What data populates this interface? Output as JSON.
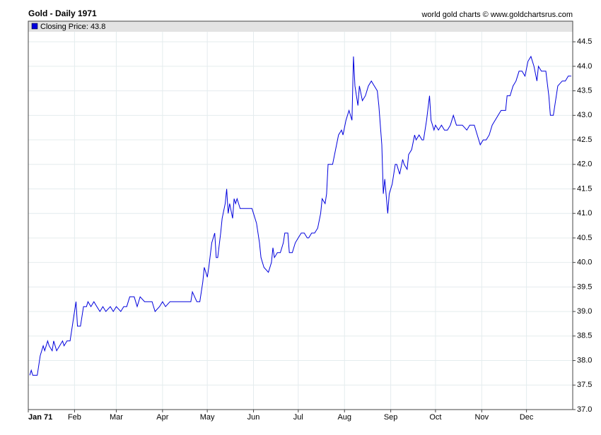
{
  "chart_data": {
    "type": "line",
    "title": "Gold - Daily 1971",
    "source": "world gold charts © www.goldchartsrus.com",
    "x": [
      1,
      2,
      3,
      6,
      8,
      10,
      11,
      13,
      14,
      16,
      17,
      19,
      21,
      23,
      24,
      26,
      28,
      30,
      32,
      33,
      35,
      37,
      39,
      40,
      42,
      44,
      46,
      48,
      50,
      52,
      55,
      57,
      59,
      62,
      64,
      66,
      68,
      71,
      73,
      75,
      78,
      83,
      85,
      88,
      90,
      92,
      95,
      100,
      104,
      109,
      110,
      113,
      115,
      117,
      118,
      120,
      121,
      123,
      125,
      126,
      127,
      129,
      130,
      132,
      133,
      134,
      135,
      137,
      138,
      139,
      140,
      142,
      145,
      148,
      150,
      153,
      155,
      156,
      158,
      161,
      163,
      164,
      165,
      167,
      169,
      171,
      172,
      174,
      175,
      177,
      179,
      181,
      183,
      185,
      187,
      188,
      190,
      192,
      194,
      196,
      197,
      199,
      200,
      201,
      204,
      206,
      208,
      210,
      211,
      213,
      215,
      217,
      218,
      219,
      221,
      222,
      224,
      226,
      228,
      230,
      232,
      234,
      235,
      237,
      238,
      239,
      241,
      242,
      244,
      246,
      247,
      249,
      251,
      252,
      254,
      255,
      257,
      259,
      260,
      262,
      264,
      265,
      267,
      269,
      270,
      272,
      273,
      275,
      277,
      279,
      281,
      283,
      285,
      287,
      289,
      291,
      294,
      296,
      299,
      301,
      303,
      305,
      307,
      309,
      311,
      313,
      315,
      317,
      320,
      321,
      323,
      325,
      327,
      329,
      331,
      333,
      335,
      337,
      339,
      341,
      342,
      344,
      347,
      349,
      350,
      352,
      354,
      355,
      358,
      360,
      362,
      364
    ],
    "series": [
      {
        "name": "Closing Price",
        "color": "#0000dd",
        "values": [
          37.7,
          37.8,
          37.7,
          37.7,
          38.1,
          38.3,
          38.2,
          38.4,
          38.3,
          38.2,
          38.4,
          38.2,
          38.3,
          38.4,
          38.3,
          38.4,
          38.4,
          38.8,
          39.2,
          38.7,
          38.7,
          39.1,
          39.1,
          39.2,
          39.1,
          39.2,
          39.1,
          39.0,
          39.1,
          39.0,
          39.1,
          39.0,
          39.1,
          39.0,
          39.1,
          39.1,
          39.3,
          39.3,
          39.1,
          39.3,
          39.2,
          39.2,
          39.0,
          39.1,
          39.2,
          39.1,
          39.2,
          39.2,
          39.2,
          39.2,
          39.4,
          39.2,
          39.2,
          39.6,
          39.9,
          39.7,
          39.9,
          40.4,
          40.6,
          40.1,
          40.1,
          40.6,
          40.9,
          41.2,
          41.5,
          41.0,
          41.2,
          40.9,
          41.3,
          41.2,
          41.3,
          41.1,
          41.1,
          41.1,
          41.1,
          40.8,
          40.4,
          40.1,
          39.9,
          39.8,
          40.0,
          40.3,
          40.1,
          40.2,
          40.2,
          40.4,
          40.6,
          40.6,
          40.2,
          40.2,
          40.4,
          40.5,
          40.6,
          40.6,
          40.5,
          40.5,
          40.6,
          40.6,
          40.7,
          41.0,
          41.3,
          41.2,
          41.4,
          42.0,
          42.0,
          42.3,
          42.6,
          42.7,
          42.6,
          42.9,
          43.1,
          42.9,
          44.2,
          43.6,
          43.2,
          43.6,
          43.3,
          43.4,
          43.6,
          43.7,
          43.6,
          43.5,
          43.2,
          42.4,
          41.4,
          41.7,
          41.0,
          41.4,
          41.6,
          42.0,
          42.0,
          41.8,
          42.1,
          42.0,
          41.9,
          42.2,
          42.3,
          42.6,
          42.5,
          42.6,
          42.5,
          42.5,
          42.9,
          43.4,
          42.9,
          42.7,
          42.8,
          42.7,
          42.8,
          42.7,
          42.7,
          42.8,
          43.0,
          42.8,
          42.8,
          42.8,
          42.7,
          42.8,
          42.8,
          42.6,
          42.4,
          42.5,
          42.5,
          42.6,
          42.8,
          42.9,
          43.0,
          43.1,
          43.1,
          43.4,
          43.4,
          43.6,
          43.7,
          43.9,
          43.9,
          43.8,
          44.1,
          44.2,
          44.0,
          43.7,
          44.0,
          43.9,
          43.9,
          43.4,
          43.0,
          43.0,
          43.4,
          43.6,
          43.7,
          43.7,
          43.8,
          43.8
        ]
      }
    ],
    "xlim": [
      0,
      365
    ],
    "xticks": [
      {
        "value": 0,
        "label": "Jan 71"
      },
      {
        "value": 31,
        "label": "Feb"
      },
      {
        "value": 59,
        "label": "Mar"
      },
      {
        "value": 90,
        "label": "Apr"
      },
      {
        "value": 120,
        "label": "May"
      },
      {
        "value": 151,
        "label": "Jun"
      },
      {
        "value": 181,
        "label": "Jul"
      },
      {
        "value": 212,
        "label": "Aug"
      },
      {
        "value": 243,
        "label": "Sep"
      },
      {
        "value": 273,
        "label": "Oct"
      },
      {
        "value": 304,
        "label": "Nov"
      },
      {
        "value": 334,
        "label": "Dec"
      }
    ],
    "ylim": [
      37,
      44.92
    ],
    "yticks": [
      {
        "value": 37,
        "label": "37.0"
      },
      37.5,
      {
        "value": 38,
        "label": "38.0"
      },
      38.5,
      {
        "value": 39,
        "label": "39.0"
      },
      39.5,
      {
        "value": 40,
        "label": "40.0"
      },
      40.5,
      {
        "value": 41,
        "label": "41.0"
      },
      41.5,
      {
        "value": 42,
        "label": "42.0"
      },
      42.5,
      {
        "value": 43,
        "label": "43.0"
      },
      43.5,
      {
        "value": 44,
        "label": "44.0"
      },
      44.5
    ],
    "grid": true
  }
}
